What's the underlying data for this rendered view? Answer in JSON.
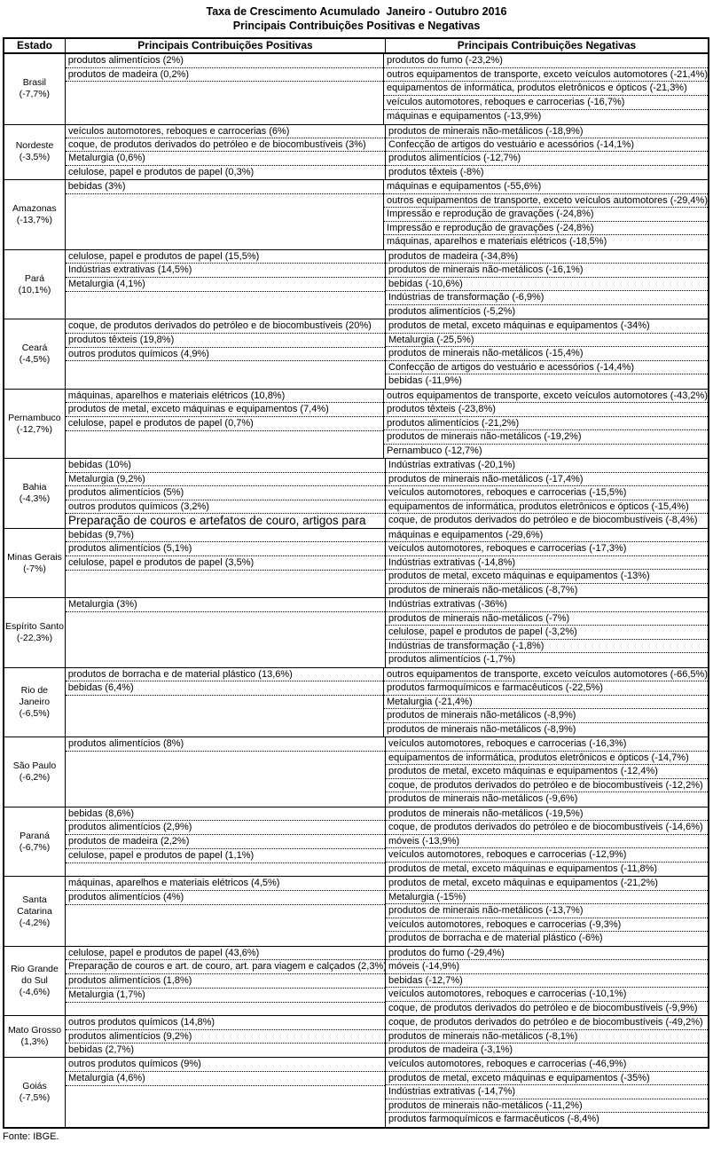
{
  "title": "Taxa de Crescimento Acumulado  Janeiro - Outubro 2016",
  "subtitle": "Principais Contribuições Positivas e Negativas",
  "fonte": "Fonte: IBGE.",
  "colors": {
    "border": "#000000",
    "background": "#ffffff",
    "text": "#000000"
  },
  "table": {
    "headers": [
      "Estado",
      "Principais Contribuições Positivas",
      "Principais Contribuições Negativas"
    ],
    "states": [
      {
        "name": "Brasil",
        "rate": "(-7,7%)",
        "positives": [
          "produtos alimentícios (2%)",
          "produtos de madeira (0,2%)"
        ],
        "negatives": [
          "produtos do fumo (-23,2%)",
          "outros equipamentos de transporte, exceto veículos automotores (-21,4%)",
          "equipamentos de informática, produtos eletrônicos e ópticos (-21,3%)",
          "veículos automotores, reboques e carrocerias (-16,7%)",
          "máquinas e equipamentos (-13,9%)"
        ]
      },
      {
        "name": "Nordeste",
        "rate": "(-3,5%)",
        "positives": [
          "veículos automotores, reboques e carrocerias (6%)",
          "coque, de produtos derivados do petróleo e de biocombustíveis (3%)",
          "Metalurgia (0,6%)",
          "celulose, papel e produtos de papel (0,3%)"
        ],
        "negatives": [
          "produtos de minerais não-metálicos (-18,9%)",
          "Confecção de artigos do vestuário e acessórios (-14,1%)",
          "produtos alimentícios (-12,7%)",
          "produtos têxteis (-8%)"
        ]
      },
      {
        "name": "Amazonas",
        "rate": "(-13,7%)",
        "positives": [
          "bebidas (3%)"
        ],
        "negatives": [
          "máquinas e equipamentos (-55,6%)",
          "outros equipamentos de transporte, exceto veículos automotores (-29,4%)",
          "Impressão e reprodução de gravações (-24,8%)",
          "Impressão e reprodução de gravações (-24,8%)",
          "máquinas, aparelhos e materiais elétricos (-18,5%)"
        ]
      },
      {
        "name": "Pará",
        "rate": "(10,1%)",
        "positives": [
          "celulose, papel e produtos de papel (15,5%)",
          "Indústrias extrativas (14,5%)",
          "Metalurgia (4,1%)"
        ],
        "negatives": [
          "produtos de madeira (-34,8%)",
          "produtos de minerais não-metálicos (-16,1%)",
          "bebidas (-10,6%)",
          "Indústrias de transformação (-6,9%)",
          "produtos alimentícios (-5,2%)"
        ]
      },
      {
        "name": "Ceará",
        "rate": "(-4,5%)",
        "positives": [
          "coque, de produtos derivados do petróleo e de biocombustíveis (20%)",
          "produtos têxteis (19,8%)",
          "outros produtos químicos (4,9%)"
        ],
        "negatives": [
          "produtos de metal, exceto máquinas e equipamentos (-34%)",
          "Metalurgia (-25,5%)",
          "produtos de minerais não-metálicos (-15,4%)",
          "Confecção de artigos do vestuário e acessórios (-14,4%)",
          "bebidas (-11,9%)"
        ]
      },
      {
        "name": "Pernambuco",
        "rate": "(-12,7%)",
        "positives": [
          "máquinas, aparelhos e materiais elétricos (10,8%)",
          "produtos de metal, exceto máquinas e equipamentos (7,4%)",
          "celulose, papel e produtos de papel (0,7%)"
        ],
        "negatives": [
          "outros equipamentos de transporte, exceto veículos automotores (-43,2%)",
          "produtos têxteis (-23,8%)",
          "produtos alimentícios (-21,2%)",
          "produtos de minerais não-metálicos (-19,2%)",
          "Pernambuco (-12,7%)"
        ]
      },
      {
        "name": "Bahia",
        "rate": "(-4,3%)",
        "positives": [
          "bebidas (10%)",
          "Metalurgia (9,2%)",
          "produtos alimentícios (5%)",
          "outros produtos químicos (3,2%)",
          {
            "text": "Preparação de couros e artefatos de couro, artigos para",
            "big": true
          }
        ],
        "negatives": [
          "Indústrias extrativas (-20,1%)",
          "produtos de minerais não-metálicos (-17,4%)",
          "veículos automotores, reboques e carrocerias (-15,5%)",
          "equipamentos de informática, produtos eletrônicos e ópticos (-15,4%)",
          "coque, de produtos derivados do petróleo e de biocombustíveis (-8,4%)"
        ]
      },
      {
        "name": "Minas Gerais",
        "rate": "(-7%)",
        "positives": [
          "bebidas (9,7%)",
          "produtos alimentícios (5,1%)",
          "celulose, papel e produtos de papel (3,5%)"
        ],
        "negatives": [
          "máquinas e equipamentos (-29,6%)",
          "veículos automotores, reboques e carrocerias (-17,3%)",
          "Indústrias extrativas (-14,8%)",
          "produtos de metal, exceto máquinas e equipamentos (-13%)",
          "produtos de minerais não-metálicos (-8,7%)"
        ]
      },
      {
        "name": "Espírito Santo",
        "rate": "(-22,3%)",
        "positives": [
          "Metalurgia (3%)"
        ],
        "negatives": [
          "Indústrias extrativas (-36%)",
          "produtos de minerais não-metálicos (-7%)",
          "celulose, papel e produtos de papel (-3,2%)",
          "Indústrias de transformação (-1,8%)",
          "produtos alimentícios (-1,7%)"
        ]
      },
      {
        "name": "Rio de Janeiro",
        "rate": "(-6,5%)",
        "positives": [
          "produtos de borracha e de material plástico (13,6%)",
          "bebidas (6,4%)"
        ],
        "negatives": [
          "outros equipamentos de transporte, exceto veículos automotores (-66,5%)",
          "produtos farmoquímicos e farmacêuticos (-22,5%)",
          "Metalurgia (-21,4%)",
          "produtos de minerais não-metálicos (-8,9%)",
          "produtos de minerais não-metálicos (-8,9%)"
        ]
      },
      {
        "name": "São Paulo",
        "rate": "(-6,2%)",
        "positives": [
          "produtos alimentícios (8%)"
        ],
        "negatives": [
          "veículos automotores, reboques e carrocerias (-16,3%)",
          "equipamentos de informática, produtos eletrônicos e ópticos (-14,7%)",
          "produtos de metal, exceto máquinas e equipamentos (-12,4%)",
          "coque, de produtos derivados do petróleo e de biocombustíveis (-12,2%)",
          "produtos de minerais não-metálicos (-9,6%)"
        ]
      },
      {
        "name": "Paraná",
        "rate": "(-6,7%)",
        "positives": [
          "bebidas (8,6%)",
          "produtos alimentícios (2,9%)",
          "produtos de madeira (2,2%)",
          "celulose, papel e produtos de papel (1,1%)"
        ],
        "negatives": [
          "produtos de minerais não-metálicos (-19,5%)",
          "coque, de produtos derivados do petróleo e de biocombustíveis (-14,6%)",
          "móveis (-13,9%)",
          "veículos automotores, reboques e carrocerias (-12,9%)",
          "produtos de metal, exceto máquinas e equipamentos (-11,8%)"
        ]
      },
      {
        "name": "Santa Catarina",
        "rate": "(-4,2%)",
        "positives": [
          "máquinas, aparelhos e materiais elétricos (4,5%)",
          "produtos alimentícios (4%)"
        ],
        "negatives": [
          "produtos de metal, exceto máquinas e equipamentos (-21,2%)",
          "Metalurgia (-15%)",
          "produtos de minerais não-metálicos (-13,7%)",
          "veículos automotores, reboques e carrocerias (-9,3%)",
          "produtos de borracha e de material plástico (-6%)"
        ]
      },
      {
        "name": "Rio Grande do Sul",
        "rate": "(-4,6%)",
        "positives": [
          "celulose, papel e produtos de papel (43,6%)",
          "Preparação de couros e art. de couro, art. para viagem e calçados (2,3%)",
          "produtos alimentícios (1,8%)",
          "Metalurgia (1,7%)"
        ],
        "negatives": [
          "produtos do fumo (-29,4%)",
          "móveis (-14,9%)",
          "bebidas (-12,7%)",
          "veículos automotores, reboques e carrocerias (-10,1%)",
          "coque, de produtos derivados do petróleo e de biocombustíveis (-9,9%)"
        ]
      },
      {
        "name": "Mato Grosso",
        "rate": "(1,3%)",
        "positives": [
          "outros produtos químicos (14,8%)",
          "produtos alimentícios (9,2%)",
          "bebidas (2,7%)"
        ],
        "negatives": [
          "coque, de produtos derivados do petróleo e de biocombustíveis (-49,2%)",
          "produtos de minerais não-metálicos (-8,1%)",
          "produtos de madeira (-3,1%)"
        ]
      },
      {
        "name": "Goiás",
        "rate": "(-7,5%)",
        "positives": [
          "outros produtos químicos (9%)",
          "Metalurgia (4,6%)"
        ],
        "negatives": [
          "veículos automotores, reboques e carrocerias (-46,9%)",
          "produtos de metal, exceto máquinas e equipamentos (-35%)",
          "Indústrias extrativas (-14,7%)",
          "produtos de minerais não-metálicos (-11,2%)",
          "produtos farmoquímicos e farmacêuticos (-8,4%)"
        ]
      }
    ]
  }
}
